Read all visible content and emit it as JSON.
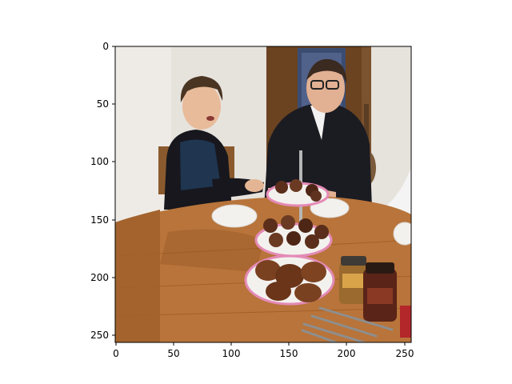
{
  "axes": {
    "x_ticks": [
      "0",
      "50",
      "100",
      "150",
      "200",
      "250"
    ],
    "y_ticks": [
      "0",
      "50",
      "100",
      "150",
      "200",
      "250"
    ],
    "x_range": [
      0,
      256
    ],
    "y_range": [
      256,
      0
    ]
  },
  "image": {
    "subject": "boy-and-man-at-dining-table-with-cupcake-stand",
    "colors": {
      "wall": "#e8e4df",
      "table": "#b8743a",
      "table_dark": "#8a4f22",
      "door": "#6b4320",
      "sweater": "#1c1c24",
      "vest": "#1f3550",
      "plate": "#f3f1ee",
      "plate_rim": "#e48ab6",
      "cake": "#5a2e1a",
      "jar": "#6a2a1a"
    }
  }
}
